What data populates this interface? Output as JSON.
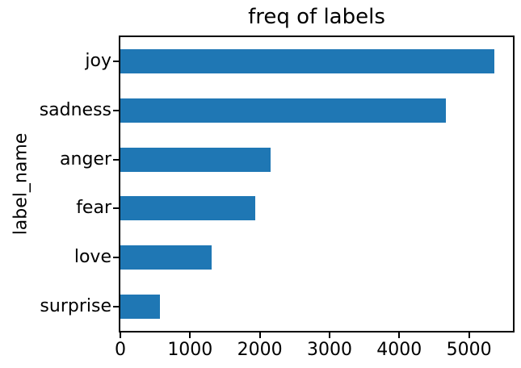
{
  "figure": {
    "background": "#ffffff",
    "text_color": "#000000",
    "spine_color": "#000000"
  },
  "chart_data": {
    "type": "bar",
    "orientation": "horizontal",
    "title": "freq of labels",
    "xlabel": "",
    "ylabel": "label_name",
    "categories": [
      "joy",
      "sadness",
      "anger",
      "fear",
      "love",
      "surprise"
    ],
    "values": [
      5362,
      4666,
      2159,
      1937,
      1304,
      572
    ],
    "xticks": [
      0,
      1000,
      2000,
      3000,
      4000,
      5000
    ],
    "xlim": [
      0,
      5630
    ],
    "bar_color": "#1f77b4",
    "grid": false,
    "legend": "none"
  }
}
